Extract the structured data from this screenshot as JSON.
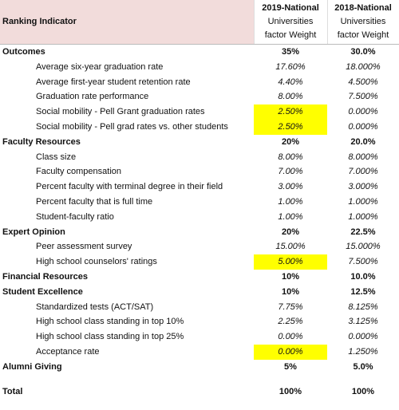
{
  "header": {
    "indicator": "Ranking Indicator",
    "col2019": [
      "2019-National",
      "Universities",
      "factor Weight"
    ],
    "col2018": [
      "2018-National",
      "Universities",
      "factor Weight"
    ]
  },
  "rows": [
    {
      "label": "Outcomes",
      "level": "section",
      "v2019": "35%",
      "v2018": "30.0%"
    },
    {
      "label": "Average six-year graduation rate",
      "level": "item",
      "v2019": "17.60%",
      "v2018": "18.000%"
    },
    {
      "label": "Average first-year student retention rate",
      "level": "item",
      "v2019": "4.40%",
      "v2018": "4.500%"
    },
    {
      "label": "Graduation rate performance",
      "level": "item",
      "v2019": "8.00%",
      "v2018": "7.500%"
    },
    {
      "label": "Social mobility - Pell Grant graduation rates",
      "level": "item",
      "v2019": "2.50%",
      "v2018": "0.000%",
      "highlight": true
    },
    {
      "label": "Social mobility - Pell grad rates vs. other students",
      "level": "item",
      "v2019": "2.50%",
      "v2018": "0.000%",
      "highlight": true
    },
    {
      "label": "Faculty Resources",
      "level": "section",
      "v2019": "20%",
      "v2018": "20.0%"
    },
    {
      "label": "Class size",
      "level": "item",
      "v2019": "8.00%",
      "v2018": "8.000%"
    },
    {
      "label": "Faculty compensation",
      "level": "item",
      "v2019": "7.00%",
      "v2018": "7.000%"
    },
    {
      "label": "Percent faculty with terminal degree in their field",
      "level": "item",
      "v2019": "3.00%",
      "v2018": "3.000%"
    },
    {
      "label": "Percent faculty that is full time",
      "level": "item",
      "v2019": "1.00%",
      "v2018": "1.000%"
    },
    {
      "label": "Student-faculty ratio",
      "level": "item",
      "v2019": "1.00%",
      "v2018": "1.000%"
    },
    {
      "label": "Expert Opinion",
      "level": "section",
      "v2019": "20%",
      "v2018": "22.5%"
    },
    {
      "label": "Peer assessment survey",
      "level": "item",
      "v2019": "15.00%",
      "v2018": "15.000%"
    },
    {
      "label": "High school counselors' ratings",
      "level": "item",
      "v2019": "5.00%",
      "v2018": "7.500%",
      "highlight": true
    },
    {
      "label": "Financial Resources",
      "level": "section",
      "v2019": "10%",
      "v2018": "10.0%"
    },
    {
      "label": "Student Excellence",
      "level": "section",
      "v2019": "10%",
      "v2018": "12.5%"
    },
    {
      "label": "Standardized tests (ACT/SAT)",
      "level": "item",
      "v2019": "7.75%",
      "v2018": "8.125%"
    },
    {
      "label": "High school class standing in top 10%",
      "level": "item",
      "v2019": "2.25%",
      "v2018": "3.125%"
    },
    {
      "label": "High school class standing in top 25%",
      "level": "item",
      "v2019": "0.00%",
      "v2018": "0.000%"
    },
    {
      "label": "Acceptance rate",
      "level": "item",
      "v2019": "0.00%",
      "v2018": "1.250%",
      "highlight": true
    },
    {
      "label": "Alumni Giving",
      "level": "section",
      "v2019": "5%",
      "v2018": "5.0%"
    }
  ],
  "total": {
    "label": "Total",
    "v2019": "100%",
    "v2018": "100%"
  }
}
